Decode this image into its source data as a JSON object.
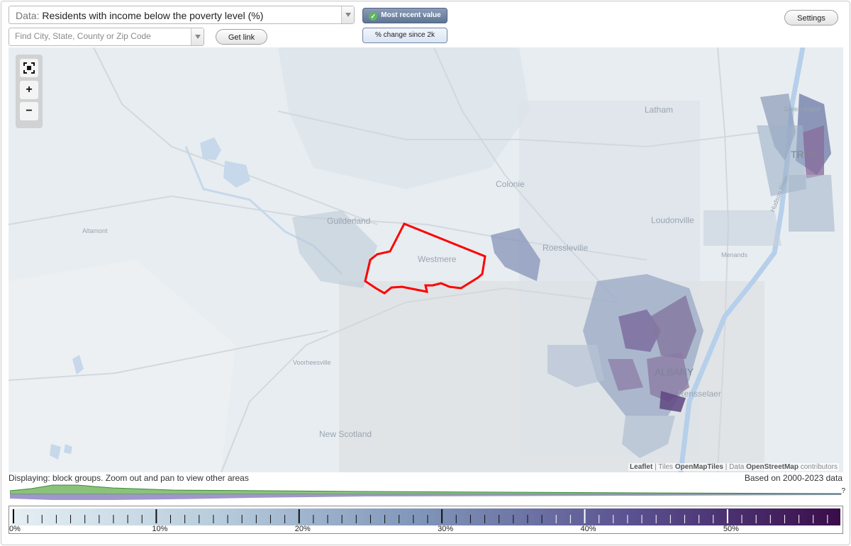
{
  "controls": {
    "data_prefix": "Data:",
    "data_value": "Residents with income below the poverty level (%)",
    "find_placeholder": "Find City, State, County or Zip Code",
    "get_link_label": "Get link",
    "mode_active_label": "Most recent value",
    "mode_other_label": "% change since 2k",
    "settings_label": "Settings"
  },
  "map": {
    "labels": {
      "green_island": "Green Island",
      "latham": "Latham",
      "troy": "TROY",
      "colonie": "Colonie",
      "guilderland": "Guilderland",
      "loudonville": "Loudonville",
      "altamont": "Altamont",
      "roessleville": "Roessleville",
      "hudson_river": "Hudson River",
      "menands": "Menands",
      "westmere": "Westmere",
      "albany": "ALBANY",
      "rensselaer": "Rensselaer",
      "voorheesville": "Voorheesville",
      "new_scotland": "New Scotland"
    },
    "highlight_color": "#ff0000",
    "attribution": {
      "leaflet": "Leaflet",
      "sep1": "|",
      "tiles_prefix": "Tiles",
      "tiles": "OpenMapTiles",
      "sep2": "|",
      "data_prefix": "Data",
      "osm": "OpenStreetMap",
      "contributors": "contributors"
    }
  },
  "zoom": {
    "zoom_in": "+",
    "zoom_out": "−"
  },
  "status": {
    "displaying": "Displaying: block groups. Zoom out and pan to view other areas",
    "based_on": "Based on 2000-2023 data"
  },
  "histogram": {
    "unknown_label": "?"
  },
  "legend": {
    "ticks": [
      "0%",
      "10%",
      "20%",
      "30%",
      "40%",
      "50%"
    ],
    "min": 0,
    "max": 58,
    "colors": [
      "#e5eff4",
      "#b7ccdc",
      "#7e94b8",
      "#5a5190",
      "#3a0c49"
    ]
  }
}
